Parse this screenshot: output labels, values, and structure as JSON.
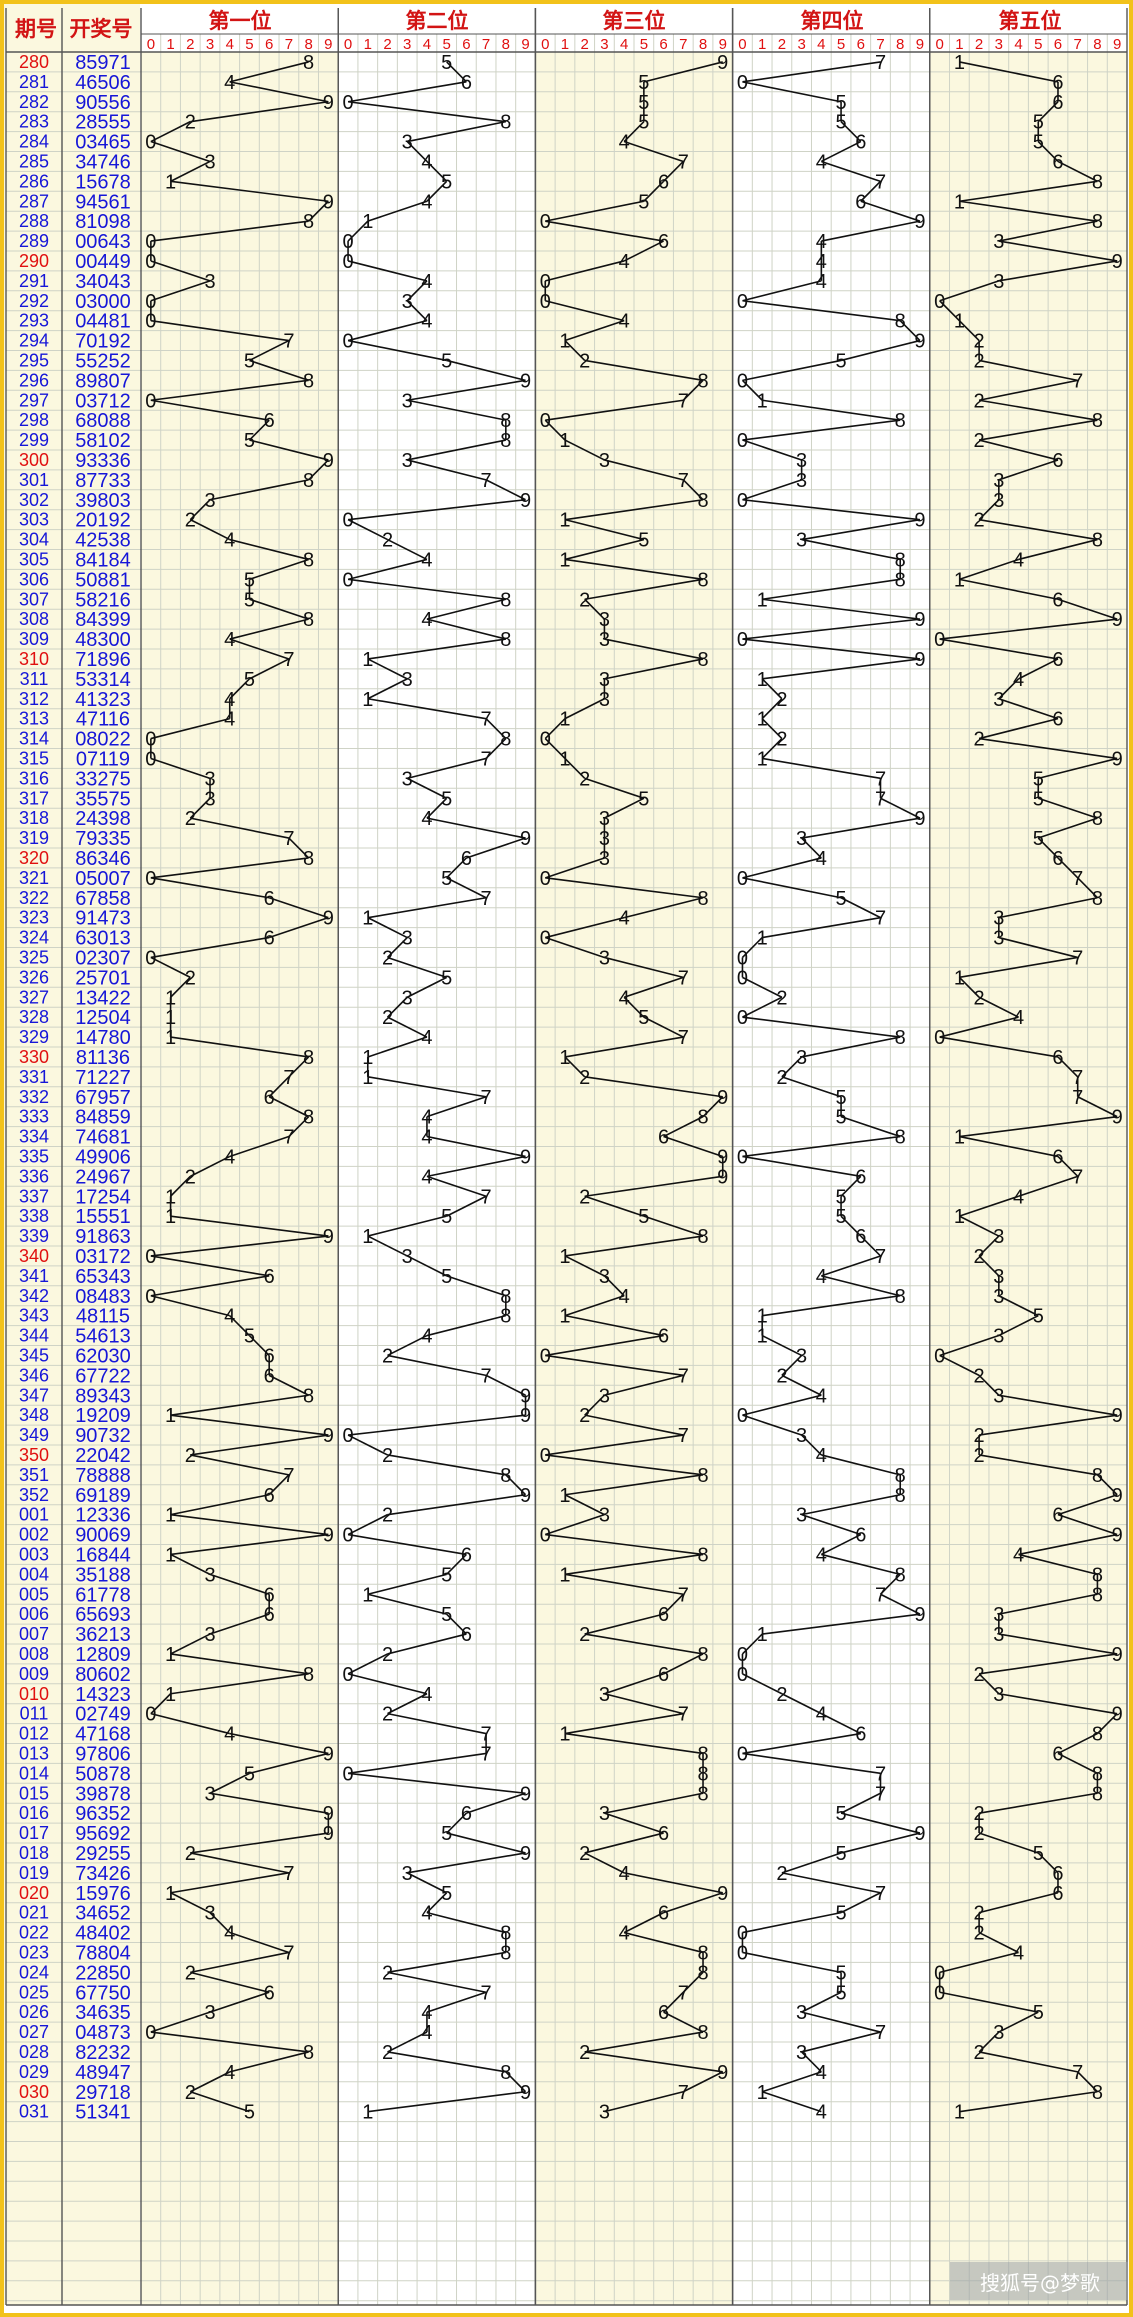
{
  "header": {
    "issue_label": "期号",
    "number_label": "开奖号",
    "positions": [
      "第一位",
      "第二位",
      "第三位",
      "第四位",
      "第五位"
    ],
    "digits": [
      "0",
      "1",
      "2",
      "3",
      "4",
      "5",
      "6",
      "7",
      "8",
      "9"
    ]
  },
  "watermark": "搜狐号@梦歌",
  "colors": {
    "frame": "#f2c21a",
    "band": "#fbf8df",
    "grid": "#cfd3c6",
    "issue_normal": "#1616d8",
    "issue_highlight": "#e01010",
    "numbers": "#1616d8",
    "marks": "#111111"
  },
  "chart_data": {
    "type": "line",
    "title": "",
    "xlabel": "",
    "ylabel": "",
    "highlight_issues": [
      "280",
      "290",
      "300",
      "310",
      "320",
      "330",
      "340",
      "350",
      "010",
      "020",
      "030"
    ],
    "issues": [
      "280",
      "281",
      "282",
      "283",
      "284",
      "285",
      "286",
      "287",
      "288",
      "289",
      "290",
      "291",
      "292",
      "293",
      "294",
      "295",
      "296",
      "297",
      "298",
      "299",
      "300",
      "301",
      "302",
      "303",
      "304",
      "305",
      "306",
      "307",
      "308",
      "309",
      "310",
      "311",
      "312",
      "313",
      "314",
      "315",
      "316",
      "317",
      "318",
      "319",
      "320",
      "321",
      "322",
      "323",
      "324",
      "325",
      "326",
      "327",
      "328",
      "329",
      "330",
      "331",
      "332",
      "333",
      "334",
      "335",
      "336",
      "337",
      "338",
      "339",
      "340",
      "341",
      "342",
      "343",
      "344",
      "345",
      "346",
      "347",
      "348",
      "349",
      "350",
      "351",
      "352",
      "001",
      "002",
      "003",
      "004",
      "005",
      "006",
      "007",
      "008",
      "009",
      "010",
      "011",
      "012",
      "013",
      "014",
      "015",
      "016",
      "017",
      "018",
      "019",
      "020",
      "021",
      "022",
      "023",
      "024",
      "025",
      "026",
      "027",
      "028",
      "029",
      "030",
      "031"
    ],
    "numbers": [
      "85971",
      "46506",
      "90556",
      "28555",
      "03465",
      "34746",
      "15678",
      "94561",
      "81098",
      "00643",
      "00449",
      "34043",
      "03000",
      "04481",
      "70192",
      "55252",
      "89807",
      "03712",
      "68088",
      "58102",
      "93336",
      "87733",
      "39803",
      "20192",
      "42538",
      "84184",
      "50881",
      "58216",
      "84399",
      "48300",
      "71896",
      "53314",
      "41323",
      "47116",
      "08022",
      "07119",
      "33275",
      "35575",
      "24398",
      "79335",
      "86346",
      "05007",
      "67858",
      "91473",
      "63013",
      "02307",
      "25701",
      "13422",
      "12504",
      "14780",
      "81136",
      "71227",
      "67957",
      "84859",
      "74681",
      "49906",
      "24967",
      "17254",
      "15551",
      "91863",
      "03172",
      "65343",
      "08483",
      "48115",
      "54613",
      "62030",
      "67722",
      "89343",
      "19209",
      "90732",
      "22042",
      "78888",
      "69189",
      "12336",
      "90069",
      "16844",
      "35188",
      "61778",
      "65693",
      "36213",
      "12809",
      "80602",
      "14323",
      "02749",
      "47168",
      "97806",
      "50878",
      "39878",
      "96352",
      "95692",
      "29255",
      "73426",
      "15976",
      "34652",
      "48402",
      "78804",
      "22850",
      "67750",
      "34635",
      "04873",
      "82232",
      "48947",
      "29718",
      "51341"
    ],
    "series_names": [
      "第一位",
      "第二位",
      "第三位",
      "第四位",
      "第五位"
    ],
    "digit_range": [
      0,
      9
    ]
  }
}
